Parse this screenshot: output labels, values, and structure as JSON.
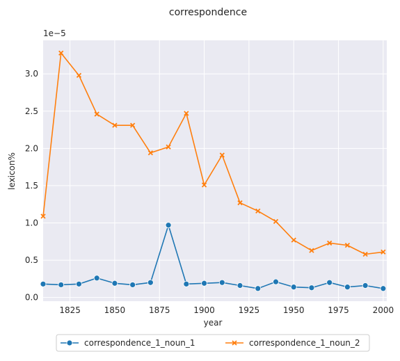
{
  "chart_data": {
    "type": "line",
    "title": "correspondence",
    "xlabel": "year",
    "ylabel": "lexicon%",
    "y_offset_label": "1e−5",
    "xlim": [
      1810,
      2002
    ],
    "ylim": [
      -0.05,
      3.45
    ],
    "x_ticks": [
      1825,
      1850,
      1875,
      1900,
      1925,
      1950,
      1975,
      2000
    ],
    "y_ticks": [
      0.0,
      0.5,
      1.0,
      1.5,
      2.0,
      2.5,
      3.0
    ],
    "y_tick_labels": [
      "0.0",
      "0.5",
      "1.0",
      "1.5",
      "2.0",
      "2.5",
      "3.0"
    ],
    "grid": true,
    "legend_position": "bottom",
    "x": [
      1810,
      1820,
      1830,
      1840,
      1850,
      1860,
      1870,
      1880,
      1890,
      1900,
      1910,
      1920,
      1930,
      1940,
      1950,
      1960,
      1970,
      1980,
      1990,
      2000
    ],
    "series": [
      {
        "name": "correspondence_1_noun_1",
        "color": "#1f77b4",
        "marker": "circle",
        "values": [
          0.18,
          0.17,
          0.18,
          0.26,
          0.19,
          0.17,
          0.2,
          0.97,
          0.18,
          0.19,
          0.2,
          0.16,
          0.12,
          0.21,
          0.14,
          0.13,
          0.2,
          0.14,
          0.16,
          0.12
        ]
      },
      {
        "name": "correspondence_1_noun_2",
        "color": "#ff7f0e",
        "marker": "x",
        "values": [
          1.09,
          3.28,
          2.98,
          2.46,
          2.31,
          2.31,
          1.94,
          2.02,
          2.47,
          1.51,
          1.91,
          1.27,
          1.16,
          1.02,
          0.77,
          0.63,
          0.73,
          0.7,
          0.58,
          0.61
        ]
      }
    ]
  }
}
